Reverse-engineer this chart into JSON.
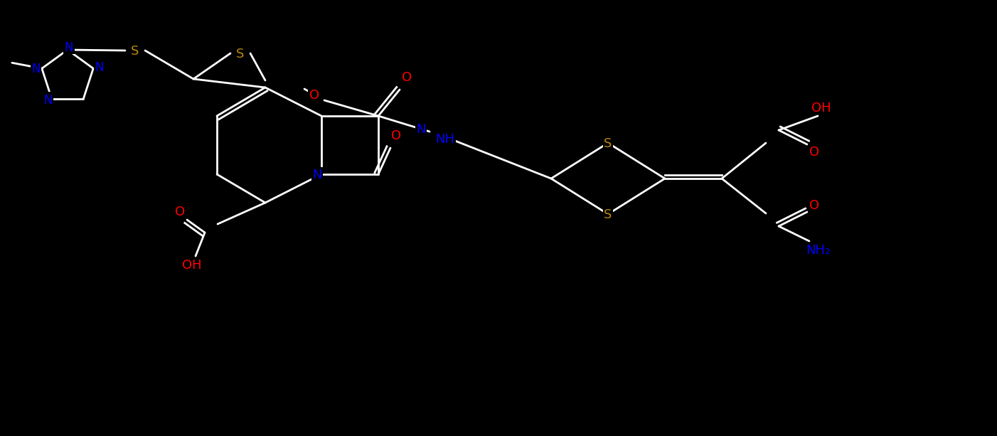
{
  "bg": "#000000",
  "wc": "#ffffff",
  "nc": "#0000ff",
  "oc": "#ff0000",
  "sc": "#b8860b",
  "figsize": [
    14.02,
    6.14
  ],
  "dpi": 100,
  "lw": 2.0,
  "fs": 13,
  "fs_small": 12
}
